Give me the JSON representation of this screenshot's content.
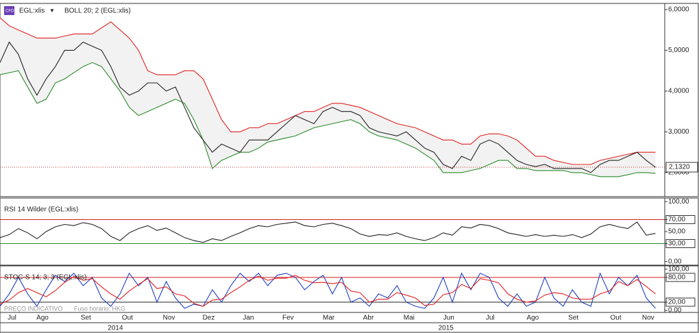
{
  "chart_data": [
    {
      "type": "line",
      "symbol": "EGL:xlis",
      "title": "BOLL 20; 2 (EGL:xlis)",
      "x": [
        0,
        1,
        2,
        3,
        4,
        5,
        6,
        7,
        8,
        9,
        10,
        11,
        12,
        13,
        14,
        15,
        16,
        17,
        18,
        19,
        20,
        21,
        22,
        23,
        24,
        25,
        26,
        27,
        28,
        29,
        30,
        31,
        32,
        33,
        34,
        35,
        36,
        37,
        38,
        39,
        40,
        41,
        42,
        43,
        44,
        45,
        46,
        47,
        48,
        49,
        50,
        51,
        52,
        53,
        54,
        55,
        56,
        57,
        58,
        59,
        60,
        61,
        62,
        63,
        64,
        65,
        66,
        67,
        68,
        69,
        70,
        71
      ],
      "xlim": [
        0,
        72
      ],
      "ylim": [
        1.41,
        6.15
      ],
      "yticks": [
        {
          "value": 2,
          "label": "2,0000"
        },
        {
          "value": 3,
          "label": "3,0000"
        },
        {
          "value": 4,
          "label": "4,0000"
        },
        {
          "value": 5,
          "label": "5,0000"
        },
        {
          "value": 6,
          "label": "6,0000"
        }
      ],
      "band_fill": "#f2f2f2",
      "last_value": {
        "value": 2.132,
        "label": "2,1320"
      },
      "series": [
        {
          "color": "#e02020",
          "values": [
            5.8,
            5.6,
            5.5,
            5.4,
            5.3,
            5.3,
            5.3,
            5.35,
            5.4,
            5.4,
            5.4,
            5.55,
            5.7,
            5.5,
            5.3,
            5.0,
            4.5,
            4.4,
            4.4,
            4.4,
            4.5,
            4.5,
            4.3,
            3.8,
            3.3,
            3.0,
            3.0,
            3.1,
            3.1,
            3.2,
            3.2,
            3.3,
            3.4,
            3.5,
            3.5,
            3.6,
            3.7,
            3.7,
            3.65,
            3.6,
            3.5,
            3.4,
            3.3,
            3.2,
            3.15,
            3.1,
            3.0,
            2.9,
            2.8,
            2.8,
            2.7,
            2.7,
            2.9,
            2.95,
            2.95,
            2.9,
            2.8,
            2.6,
            2.4,
            2.4,
            2.3,
            2.25,
            2.2,
            2.2,
            2.2,
            2.3,
            2.35,
            2.4,
            2.45,
            2.5,
            2.5,
            2.5
          ]
        },
        {
          "color": "#2a8a2a",
          "values": [
            4.4,
            4.45,
            4.5,
            4.1,
            3.7,
            3.8,
            4.2,
            4.3,
            4.45,
            4.6,
            4.7,
            4.6,
            4.3,
            4.0,
            3.6,
            3.4,
            3.5,
            3.6,
            3.7,
            3.8,
            3.7,
            3.3,
            2.8,
            2.1,
            2.3,
            2.4,
            2.5,
            2.5,
            2.6,
            2.75,
            2.8,
            2.85,
            2.9,
            3.0,
            3.1,
            3.15,
            3.2,
            3.25,
            3.3,
            3.2,
            3.0,
            2.9,
            2.85,
            2.8,
            2.7,
            2.6,
            2.45,
            2.3,
            2.0,
            2.0,
            2.0,
            2.05,
            2.1,
            2.2,
            2.3,
            2.3,
            2.1,
            2.1,
            2.05,
            2.05,
            2.05,
            2.05,
            2.0,
            2.0,
            1.95,
            1.9,
            1.9,
            1.9,
            1.95,
            2.0,
            2.0,
            1.98
          ]
        },
        {
          "color": "#222222",
          "values": [
            4.7,
            5.2,
            4.9,
            4.3,
            3.9,
            4.3,
            4.6,
            5.0,
            5.0,
            5.2,
            5.1,
            5.0,
            4.6,
            4.1,
            3.9,
            4.0,
            4.2,
            4.2,
            4.0,
            4.1,
            3.6,
            3.1,
            2.8,
            2.5,
            2.7,
            2.6,
            2.5,
            2.8,
            2.8,
            2.8,
            3.0,
            3.2,
            3.4,
            3.3,
            3.2,
            3.5,
            3.6,
            3.5,
            3.5,
            3.4,
            3.1,
            3.0,
            2.95,
            2.9,
            3.0,
            2.8,
            2.6,
            2.5,
            2.2,
            2.1,
            2.4,
            2.3,
            2.7,
            2.8,
            2.7,
            2.5,
            2.3,
            2.2,
            2.15,
            2.2,
            2.1,
            2.1,
            2.1,
            2.1,
            2.0,
            2.2,
            2.3,
            2.3,
            2.4,
            2.5,
            2.3,
            2.13
          ]
        }
      ]
    },
    {
      "type": "line",
      "title": "RSI 14 Wilder (EGL:xlis)",
      "x": [
        0,
        1,
        2,
        3,
        4,
        5,
        6,
        7,
        8,
        9,
        10,
        11,
        12,
        13,
        14,
        15,
        16,
        17,
        18,
        19,
        20,
        21,
        22,
        23,
        24,
        25,
        26,
        27,
        28,
        29,
        30,
        31,
        32,
        33,
        34,
        35,
        36,
        37,
        38,
        39,
        40,
        41,
        42,
        43,
        44,
        45,
        46,
        47,
        48,
        49,
        50,
        51,
        52,
        53,
        54,
        55,
        56,
        57,
        58,
        59,
        60,
        61,
        62,
        63,
        64,
        65,
        66,
        67,
        68,
        69,
        70,
        71
      ],
      "xlim": [
        0,
        72
      ],
      "ylim": [
        -6,
        106
      ],
      "yticks": [
        {
          "value": 0,
          "label": "0,00"
        },
        {
          "value": 30,
          "label": "30,00"
        },
        {
          "value": 50,
          "label": "50,00"
        },
        {
          "value": 70,
          "label": "70,00"
        },
        {
          "value": 100,
          "label": "100,00"
        }
      ],
      "ref_lines": [
        {
          "value": 70,
          "color": "#d02020"
        },
        {
          "value": 30,
          "color": "#2a8a2a"
        }
      ],
      "series": [
        {
          "color": "#222222",
          "values": [
            40,
            45,
            55,
            48,
            38,
            50,
            58,
            62,
            60,
            65,
            62,
            55,
            42,
            35,
            48,
            55,
            60,
            52,
            56,
            48,
            40,
            35,
            32,
            38,
            35,
            42,
            48,
            55,
            60,
            58,
            62,
            64,
            66,
            60,
            58,
            62,
            64,
            60,
            55,
            46,
            42,
            45,
            44,
            48,
            42,
            38,
            35,
            40,
            48,
            44,
            58,
            56,
            62,
            60,
            55,
            48,
            45,
            42,
            45,
            42,
            44,
            42,
            45,
            40,
            46,
            58,
            62,
            58,
            55,
            66,
            44,
            47
          ]
        }
      ]
    },
    {
      "type": "line",
      "title": "STOC-S 14; 3; 3 (EGL:xlis)",
      "footer": "PREÇO INDICATIVO",
      "timezone": "Fuso horário: HKG",
      "x": [
        0,
        1,
        2,
        3,
        4,
        5,
        6,
        7,
        8,
        9,
        10,
        11,
        12,
        13,
        14,
        15,
        16,
        17,
        18,
        19,
        20,
        21,
        22,
        23,
        24,
        25,
        26,
        27,
        28,
        29,
        30,
        31,
        32,
        33,
        34,
        35,
        36,
        37,
        38,
        39,
        40,
        41,
        42,
        43,
        44,
        45,
        46,
        47,
        48,
        49,
        50,
        51,
        52,
        53,
        54,
        55,
        56,
        57,
        58,
        59,
        60,
        61,
        62,
        63,
        64,
        65,
        66,
        67,
        68,
        69,
        70,
        71
      ],
      "xlim": [
        0,
        72
      ],
      "ylim": [
        -5,
        108
      ],
      "yticks": [
        {
          "value": 0,
          "label": "0,00"
        },
        {
          "value": 20,
          "label": "20,00"
        },
        {
          "value": 80,
          "label": "80,00"
        },
        {
          "value": 100,
          "label": "100,00"
        }
      ],
      "ref_lines": [
        {
          "value": 80,
          "color": "#d02020"
        },
        {
          "value": 20,
          "color": "#222222"
        }
      ],
      "xticks": [
        {
          "value": 1.3,
          "label": "Jul"
        },
        {
          "value": 4.6,
          "label": "Ago"
        },
        {
          "value": 9.3,
          "label": "Set"
        },
        {
          "value": 13.8,
          "label": "Out"
        },
        {
          "value": 18.3,
          "label": "Nov"
        },
        {
          "value": 22.6,
          "label": "Dez"
        },
        {
          "value": 26.9,
          "label": "Jan"
        },
        {
          "value": 31.2,
          "label": "Fev"
        },
        {
          "value": 35.6,
          "label": "Mar"
        },
        {
          "value": 39.9,
          "label": "Abr"
        },
        {
          "value": 44.3,
          "label": "Mai"
        },
        {
          "value": 48.6,
          "label": "Jun"
        },
        {
          "value": 53.1,
          "label": "Jul"
        },
        {
          "value": 57.7,
          "label": "Ago"
        },
        {
          "value": 62.1,
          "label": "Set"
        },
        {
          "value": 66.7,
          "label": "Out"
        },
        {
          "value": 70.2,
          "label": "Nov"
        }
      ],
      "year_ticks": [
        {
          "value": 12.5,
          "label": "2014"
        },
        {
          "value": 48.3,
          "label": "2015"
        }
      ],
      "series": [
        {
          "color": "#2040c0",
          "values": [
            10,
            40,
            80,
            40,
            10,
            50,
            85,
            70,
            90,
            60,
            80,
            30,
            10,
            40,
            90,
            60,
            80,
            20,
            70,
            30,
            5,
            15,
            10,
            50,
            20,
            60,
            90,
            70,
            90,
            60,
            85,
            90,
            80,
            50,
            70,
            85,
            40,
            80,
            20,
            30,
            10,
            40,
            30,
            60,
            20,
            10,
            5,
            30,
            80,
            20,
            90,
            50,
            90,
            80,
            30,
            10,
            40,
            10,
            20,
            80,
            30,
            10,
            50,
            20,
            10,
            90,
            40,
            80,
            60,
            85,
            30,
            5
          ]
        },
        {
          "color": "#e02020",
          "values": [
            15,
            25,
            43,
            53,
            43,
            33,
            48,
            68,
            82,
            73,
            77,
            57,
            40,
            27,
            47,
            63,
            77,
            53,
            57,
            40,
            35,
            17,
            10,
            25,
            27,
            43,
            57,
            73,
            83,
            73,
            78,
            78,
            85,
            73,
            67,
            68,
            65,
            68,
            47,
            43,
            20,
            27,
            27,
            43,
            37,
            30,
            12,
            15,
            38,
            43,
            63,
            53,
            77,
            73,
            67,
            40,
            27,
            20,
            23,
            37,
            43,
            40,
            30,
            27,
            27,
            40,
            47,
            70,
            60,
            75,
            58,
            40
          ]
        }
      ]
    }
  ]
}
